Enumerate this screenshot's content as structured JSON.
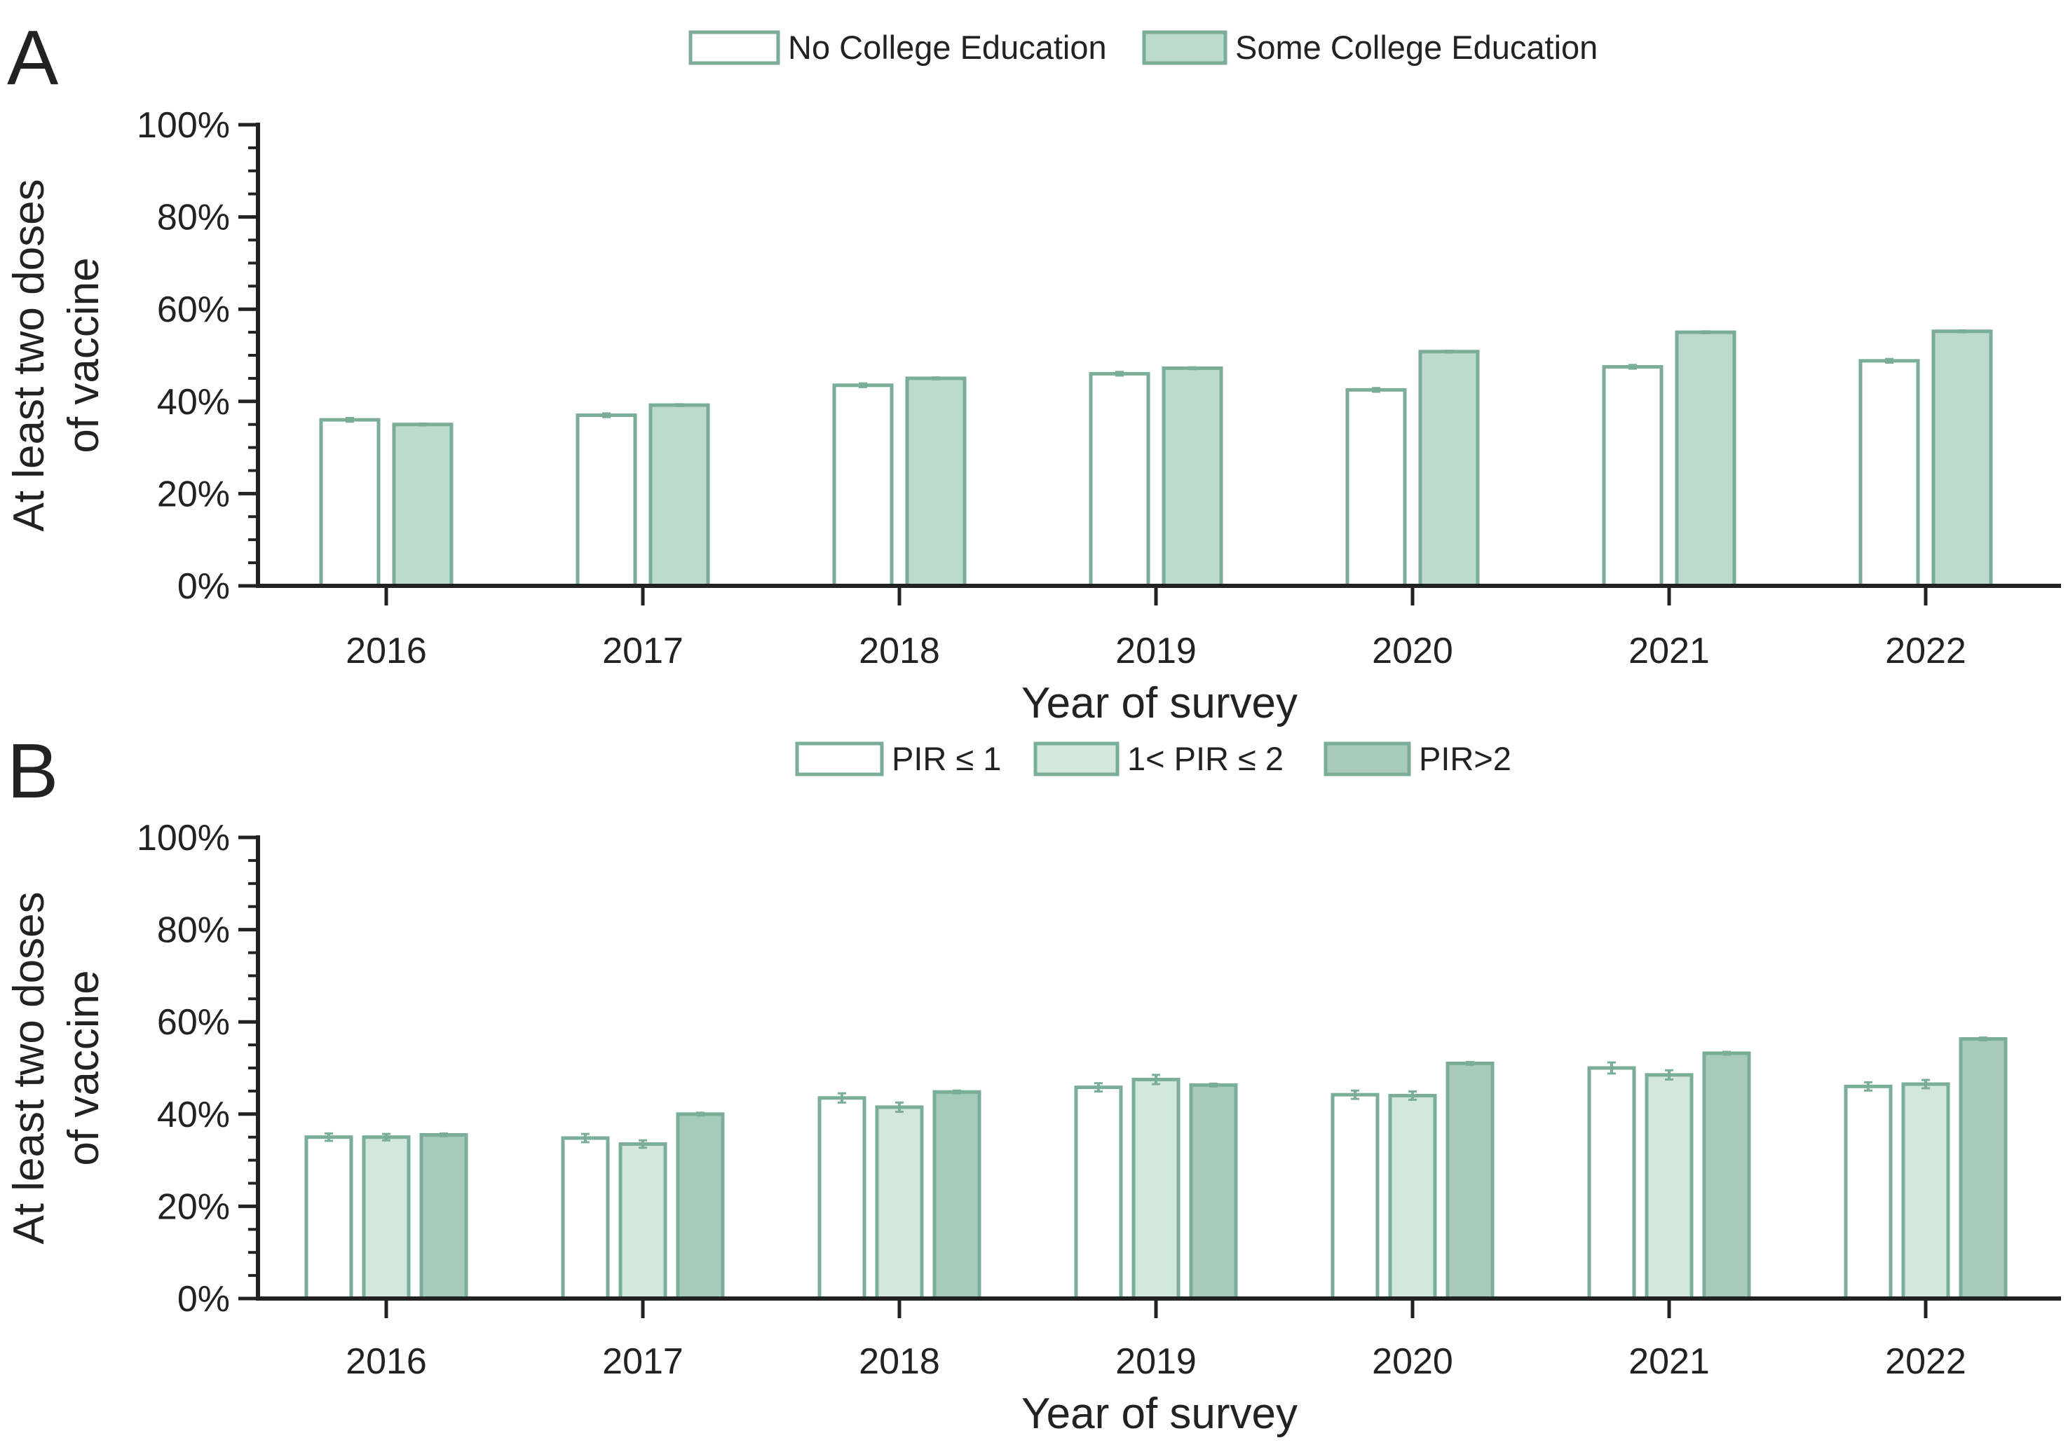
{
  "chart_data": [
    {
      "panel_label": "A",
      "type": "bar",
      "categories": [
        "2016",
        "2017",
        "2018",
        "2019",
        "2020",
        "2021",
        "2022"
      ],
      "series": [
        {
          "name": "No College Education",
          "values": [
            36,
            37,
            43.5,
            46,
            42.5,
            47.5,
            48.8
          ],
          "errors": [
            0.4,
            0.4,
            0.4,
            0.4,
            0.4,
            0.4,
            0.4
          ],
          "fill": "#ffffff"
        },
        {
          "name": "Some College Education",
          "values": [
            35,
            39.2,
            45,
            47.2,
            50.8,
            55,
            55.2
          ],
          "errors": [
            0.2,
            0.2,
            0.2,
            0.2,
            0.2,
            0.2,
            0.2
          ],
          "fill": "#bcdacd"
        }
      ],
      "xlabel": "Year of survey",
      "ylabel": [
        "At least two doses",
        "of vaccine"
      ],
      "ylim": [
        0,
        100
      ],
      "yticks": [
        "0%",
        "20%",
        "40%",
        "60%",
        "80%",
        "100%"
      ],
      "legend_placement": "top-center",
      "grid": false
    },
    {
      "panel_label": "B",
      "type": "bar",
      "categories": [
        "2016",
        "2017",
        "2018",
        "2019",
        "2020",
        "2021",
        "2022"
      ],
      "series": [
        {
          "name": "PIR ≤ 1",
          "values": [
            35,
            34.8,
            43.5,
            45.8,
            44.2,
            50,
            46
          ],
          "errors": [
            0.8,
            0.9,
            1.0,
            0.9,
            0.9,
            1.2,
            0.9
          ],
          "fill": "#ffffff"
        },
        {
          "name": "1< PIR ≤ 2",
          "values": [
            35,
            33.5,
            41.5,
            47.5,
            44,
            48.5,
            46.5
          ],
          "errors": [
            0.7,
            0.8,
            1.0,
            1.0,
            0.9,
            1.0,
            0.9
          ],
          "fill": "#d4e7de"
        },
        {
          "name": "PIR>2",
          "values": [
            35.5,
            40,
            44.8,
            46.3,
            51,
            53.2,
            56.3
          ],
          "errors": [
            0.3,
            0.3,
            0.3,
            0.3,
            0.3,
            0.3,
            0.3
          ],
          "fill": "#a6cbba"
        }
      ],
      "xlabel": "Year of survey",
      "ylabel": [
        "At least two doses",
        "of vaccine"
      ],
      "ylim": [
        0,
        100
      ],
      "yticks": [
        "0%",
        "20%",
        "40%",
        "60%",
        "80%",
        "100%"
      ],
      "legend_placement": "top-center",
      "grid": false
    }
  ],
  "colors": {
    "bar_edge": "#7aae98",
    "axis": "#222222",
    "text": "#222222"
  }
}
